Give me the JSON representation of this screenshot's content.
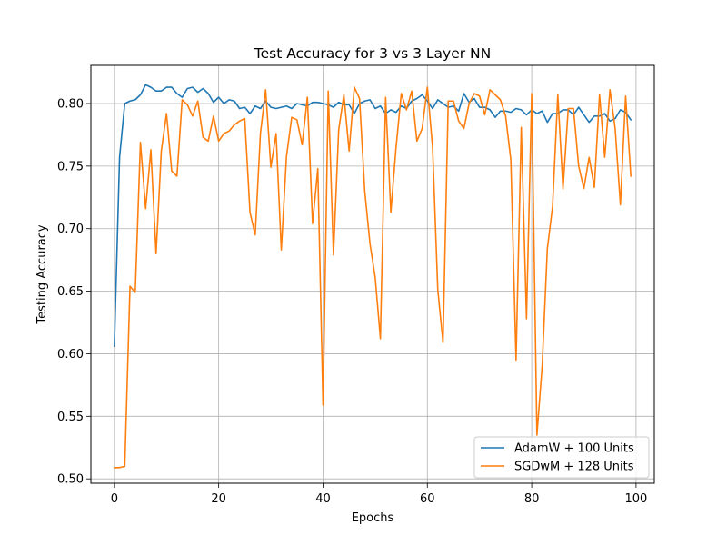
{
  "chart_data": {
    "type": "line",
    "title": "Test Accuracy for 3 vs 3 Layer NN",
    "xlabel": "Epochs",
    "ylabel": "Testing Accuracy",
    "xlim": [
      -4.5,
      103.5
    ],
    "ylim": [
      0.4965,
      0.8305
    ],
    "xticks": [
      0,
      20,
      40,
      60,
      80,
      100
    ],
    "yticks": [
      0.5,
      0.55,
      0.6,
      0.65,
      0.7,
      0.75,
      0.8
    ],
    "ytick_labels": [
      "0.50",
      "0.55",
      "0.60",
      "0.65",
      "0.70",
      "0.75",
      "0.80"
    ],
    "grid": true,
    "legend": "lower-right",
    "colors": {
      "series_0": "#1f77b4",
      "series_1": "#ff7f0e"
    },
    "x": [
      0,
      1,
      2,
      3,
      4,
      5,
      6,
      7,
      8,
      9,
      10,
      11,
      12,
      13,
      14,
      15,
      16,
      17,
      18,
      19,
      20,
      21,
      22,
      23,
      24,
      25,
      26,
      27,
      28,
      29,
      30,
      31,
      32,
      33,
      34,
      35,
      36,
      37,
      38,
      39,
      40,
      41,
      42,
      43,
      44,
      45,
      46,
      47,
      48,
      49,
      50,
      51,
      52,
      53,
      54,
      55,
      56,
      57,
      58,
      59,
      60,
      61,
      62,
      63,
      64,
      65,
      66,
      67,
      68,
      69,
      70,
      71,
      72,
      73,
      74,
      75,
      76,
      77,
      78,
      79,
      80,
      81,
      82,
      83,
      84,
      85,
      86,
      87,
      88,
      89,
      90,
      91,
      92,
      93,
      94,
      95,
      96,
      97,
      98,
      99
    ],
    "series": [
      {
        "name": "AdamW + 100 Units",
        "values": [
          0.606,
          0.757,
          0.8,
          0.802,
          0.803,
          0.807,
          0.815,
          0.813,
          0.81,
          0.81,
          0.813,
          0.813,
          0.808,
          0.805,
          0.812,
          0.813,
          0.809,
          0.812,
          0.808,
          0.801,
          0.805,
          0.8,
          0.803,
          0.802,
          0.796,
          0.797,
          0.792,
          0.798,
          0.796,
          0.802,
          0.797,
          0.796,
          0.797,
          0.798,
          0.796,
          0.8,
          0.799,
          0.798,
          0.801,
          0.801,
          0.8,
          0.799,
          0.797,
          0.801,
          0.799,
          0.799,
          0.792,
          0.8,
          0.802,
          0.803,
          0.796,
          0.798,
          0.792,
          0.795,
          0.793,
          0.798,
          0.796,
          0.802,
          0.804,
          0.807,
          0.802,
          0.796,
          0.803,
          0.8,
          0.797,
          0.798,
          0.794,
          0.808,
          0.801,
          0.804,
          0.797,
          0.797,
          0.795,
          0.789,
          0.794,
          0.794,
          0.793,
          0.796,
          0.795,
          0.791,
          0.795,
          0.792,
          0.794,
          0.785,
          0.792,
          0.792,
          0.795,
          0.795,
          0.791,
          0.797,
          0.791,
          0.785,
          0.79,
          0.79,
          0.792,
          0.786,
          0.788,
          0.795,
          0.793,
          0.787
        ]
      },
      {
        "name": "SGDwM + 128 Units",
        "values": [
          0.509,
          0.509,
          0.51,
          0.654,
          0.649,
          0.769,
          0.716,
          0.763,
          0.68,
          0.762,
          0.792,
          0.746,
          0.742,
          0.803,
          0.799,
          0.79,
          0.802,
          0.773,
          0.77,
          0.79,
          0.77,
          0.776,
          0.778,
          0.783,
          0.786,
          0.788,
          0.713,
          0.695,
          0.776,
          0.811,
          0.749,
          0.776,
          0.683,
          0.758,
          0.789,
          0.787,
          0.767,
          0.805,
          0.704,
          0.748,
          0.559,
          0.81,
          0.679,
          0.779,
          0.807,
          0.762,
          0.813,
          0.804,
          0.73,
          0.688,
          0.661,
          0.612,
          0.805,
          0.713,
          0.765,
          0.808,
          0.795,
          0.81,
          0.77,
          0.78,
          0.813,
          0.765,
          0.651,
          0.609,
          0.802,
          0.802,
          0.786,
          0.78,
          0.8,
          0.808,
          0.806,
          0.791,
          0.811,
          0.807,
          0.803,
          0.79,
          0.755,
          0.595,
          0.781,
          0.628,
          0.808,
          0.535,
          0.59,
          0.684,
          0.718,
          0.807,
          0.732,
          0.796,
          0.796,
          0.75,
          0.732,
          0.757,
          0.733,
          0.807,
          0.757,
          0.811,
          0.78,
          0.719,
          0.806,
          0.742
        ]
      }
    ]
  }
}
